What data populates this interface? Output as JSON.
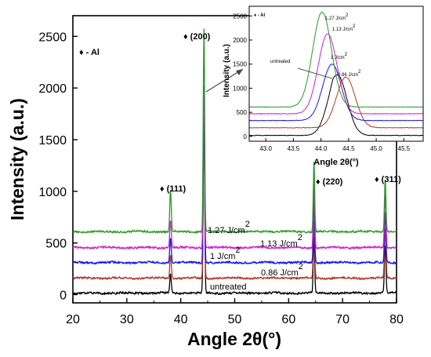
{
  "chart_data": [
    {
      "type": "line",
      "xlabel": "Angle 2θ(°)",
      "ylabel": "Intensity (a.u.)",
      "xlim": [
        20,
        80
      ],
      "ylim": [
        -80,
        2700
      ],
      "x_ticks": [
        "20",
        "30",
        "40",
        "50",
        "60",
        "70",
        "80"
      ],
      "y_ticks": [
        "0",
        "500",
        "1000",
        "1500",
        "2000",
        "2500"
      ],
      "legend_key": "♦ - Al",
      "peaks": [
        {
          "label": "♦ (111)",
          "x": 38.1
        },
        {
          "label": "♦ (200)",
          "x": 44.3
        },
        {
          "label": "♦ (220)",
          "x": 64.7
        },
        {
          "label": "♦ (311)",
          "x": 77.9
        }
      ],
      "series": [
        {
          "name": "untreated",
          "color": "#000000",
          "baseline": 15,
          "peaks": [
            200,
            2000,
            560,
            470
          ]
        },
        {
          "name": "0.86 J/cm",
          "superscript": "2",
          "color": "#b13a2a",
          "baseline": 160,
          "peaks": [
            380,
            1600,
            700,
            650
          ]
        },
        {
          "name": "1 J/cm",
          "superscript": "2",
          "color": "#1818dd",
          "baseline": 310,
          "peaks": [
            550,
            1780,
            900,
            790
          ]
        },
        {
          "name": "1.13 J/cm",
          "superscript": "2",
          "color": "#d020d0",
          "baseline": 455,
          "peaks": [
            720,
            2040,
            1080,
            960
          ]
        },
        {
          "name": "1.27 J/cm",
          "superscript": "2",
          "color": "#2a9a2a",
          "baseline": 610,
          "peaks": [
            1010,
            2580,
            1290,
            1110
          ]
        }
      ]
    },
    {
      "type": "line",
      "role": "inset",
      "xlabel": "Angle 2θ(°)",
      "ylabel": "Intensity (a.u.)",
      "xlim": [
        42.7,
        45.85
      ],
      "ylim": [
        -100,
        2700
      ],
      "x_ticks": [
        "43.0",
        "43.5",
        "44.0",
        "44.5",
        "45.0",
        "45.5"
      ],
      "y_ticks": [
        "0",
        "500",
        "1000",
        "1500",
        "2000",
        "2500"
      ],
      "legend_key": "♦ - Al",
      "series": [
        {
          "name": "untreated",
          "color": "#000000",
          "baseline": 20,
          "center": 44.3,
          "height": 1270
        },
        {
          "name": "0.86 J/cm",
          "superscript": "2",
          "color": "#b13a2a",
          "baseline": 180,
          "center": 44.45,
          "height": 1230
        },
        {
          "name": "1 J/cm",
          "superscript": "2",
          "color": "#1818dd",
          "baseline": 330,
          "center": 44.2,
          "height": 1500
        },
        {
          "name": "1.13 J/cm",
          "superscript": "2",
          "color": "#d020d0",
          "baseline": 470,
          "center": 44.12,
          "height": 2130
        },
        {
          "name": "1.27 J/cm",
          "superscript": "2",
          "color": "#2a9a2a",
          "baseline": 610,
          "center": 44.02,
          "height": 2580
        }
      ]
    }
  ]
}
